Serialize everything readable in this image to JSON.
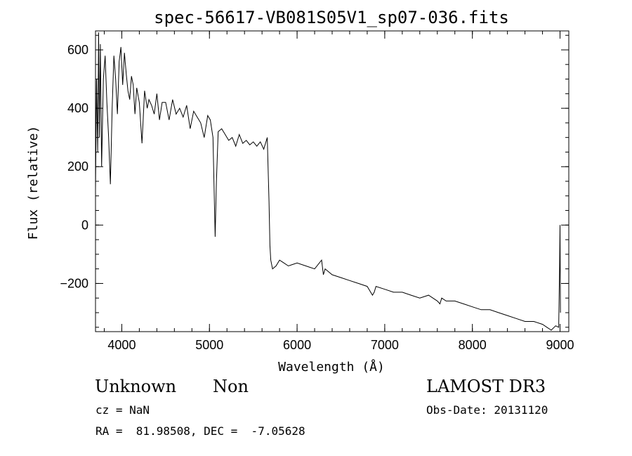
{
  "chart_data": {
    "type": "line",
    "title": "spec-56617-VB081S05V1_sp07-036.fits",
    "xlabel": "Wavelength (Å)",
    "ylabel": "Flux (relative)",
    "xlim": [
      3700,
      9100
    ],
    "ylim": [
      -365,
      665
    ],
    "xticks": [
      4000,
      5000,
      6000,
      7000,
      8000,
      9000
    ],
    "yticks": [
      -200,
      0,
      200,
      400,
      600
    ],
    "x_minor_step": 200,
    "y_minor_step": 50,
    "grid": false,
    "series": [
      {
        "x": [
          3700,
          3712,
          3725,
          3735,
          3745,
          3755,
          3770,
          3790,
          3810,
          3830,
          3850,
          3870,
          3890,
          3910,
          3930,
          3950,
          3970,
          3990,
          4010,
          4030,
          4050,
          4070,
          4090,
          4110,
          4130,
          4150,
          4170,
          4200,
          4230,
          4260,
          4290,
          4310,
          4340,
          4370,
          4400,
          4430,
          4460,
          4500,
          4540,
          4580,
          4620,
          4660,
          4700,
          4740,
          4780,
          4820,
          4860,
          4900,
          4940,
          4980,
          5010,
          5040,
          5055,
          5065,
          5080,
          5100,
          5140,
          5180,
          5220,
          5260,
          5300,
          5340,
          5380,
          5420,
          5460,
          5500,
          5540,
          5580,
          5620,
          5660,
          5680,
          5690,
          5700,
          5720,
          5760,
          5800,
          5850,
          5900,
          5950,
          6000,
          6100,
          6200,
          6280,
          6300,
          6320,
          6400,
          6500,
          6600,
          6700,
          6800,
          6860,
          6880,
          6900,
          7000,
          7100,
          7200,
          7300,
          7400,
          7500,
          7600,
          7630,
          7650,
          7700,
          7800,
          7900,
          8000,
          8100,
          8200,
          8300,
          8400,
          8500,
          8600,
          8700,
          8800,
          8850,
          8900,
          8950,
          8985,
          8995,
          9000,
          9005
        ],
        "y": [
          120,
          500,
          250,
          660,
          300,
          620,
          200,
          500,
          580,
          420,
          300,
          140,
          400,
          580,
          500,
          380,
          560,
          610,
          480,
          590,
          520,
          460,
          430,
          510,
          480,
          380,
          470,
          420,
          280,
          460,
          400,
          430,
          410,
          380,
          450,
          360,
          420,
          420,
          360,
          430,
          380,
          400,
          370,
          410,
          330,
          390,
          370,
          350,
          300,
          375,
          360,
          300,
          100,
          -40,
          150,
          320,
          330,
          310,
          290,
          300,
          270,
          310,
          280,
          290,
          275,
          285,
          270,
          285,
          260,
          300,
          80,
          -70,
          -120,
          -150,
          -140,
          -120,
          -130,
          -140,
          -135,
          -130,
          -140,
          -150,
          -120,
          -170,
          -150,
          -170,
          -180,
          -190,
          -200,
          -210,
          -240,
          -230,
          -210,
          -220,
          -230,
          -230,
          -240,
          -250,
          -240,
          -260,
          -270,
          -250,
          -260,
          -260,
          -270,
          -280,
          -290,
          -290,
          -300,
          -310,
          -320,
          -330,
          -330,
          -340,
          -350,
          -360,
          -345,
          -350,
          -140,
          0,
          -300
        ]
      }
    ]
  },
  "info": {
    "object_class": "Unknown",
    "subclass": "Non",
    "survey": "LAMOST DR3",
    "cz": "cz = NaN",
    "obs_date": "Obs-Date: 20131120",
    "coords": "RA =  81.98508, DEC =  -7.05628"
  }
}
